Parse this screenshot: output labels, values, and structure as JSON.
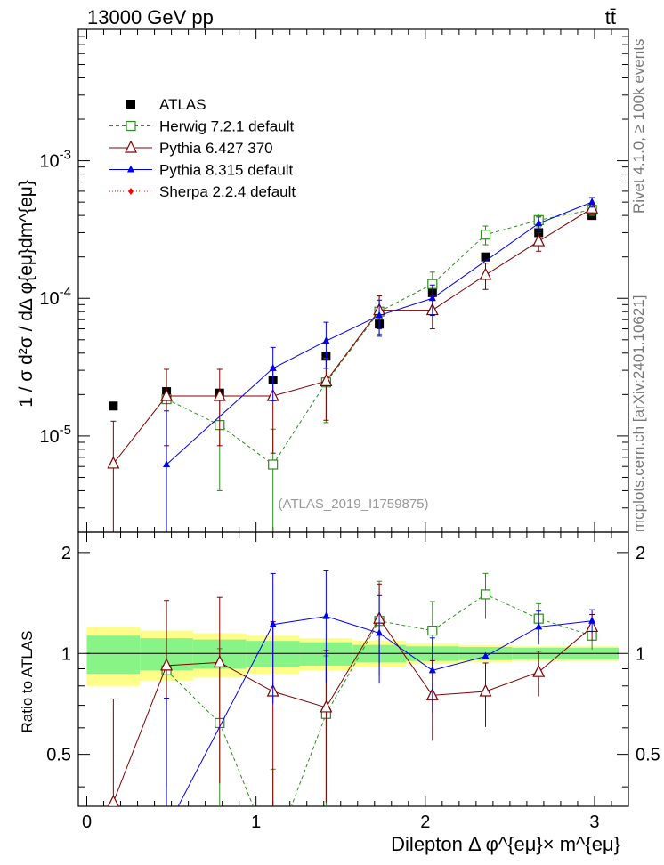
{
  "header": {
    "left": "13000 GeV pp",
    "right": "tt̄"
  },
  "side_text": {
    "rivet": "Rivet 4.1.0, ≥ 100k events",
    "mcplots": "mcplots.cern.ch [arXiv:2401.10621]"
  },
  "analysis_tag": "(ATLAS_2019_I1759875)",
  "colors": {
    "atlas": "#000000",
    "herwig": "#2e8b1e",
    "pythia6": "#800000",
    "pythia8": "#0000ee",
    "sherpa": "#ff0000",
    "band_inner": "#88f488",
    "band_outer": "#fdfd88"
  },
  "chart_data": {
    "type": "scatter",
    "title": "",
    "xlabel": "Dilepton Δ φ^{eμ}× m^{eμ}",
    "ylabel": "1 / σ d²σ / dΔ φ{eμ}dm^{eμ}",
    "ratio_ylabel": "Ratio to ATLAS",
    "xlim": [
      -0.05,
      3.2
    ],
    "ylim": [
      2e-06,
      0.009
    ],
    "yscale": "log",
    "ratio_ylim": [
      0.35,
      2.3
    ],
    "x_ticks": [
      "0",
      "1",
      "2",
      "3"
    ],
    "y_ticks": [
      "10^{-5}",
      "10^{-4}",
      "10^{-3}"
    ],
    "ratio_ticks": [
      "0.5",
      "1",
      "2"
    ],
    "x": [
      0.157,
      0.471,
      0.785,
      1.1,
      1.414,
      1.728,
      2.042,
      2.356,
      2.67,
      2.985
    ],
    "bin_edges": [
      0,
      0.314,
      0.628,
      0.942,
      1.257,
      1.571,
      1.885,
      2.199,
      2.513,
      2.827,
      3.142
    ],
    "ratio_band": {
      "inner": [
        0.13,
        0.11,
        0.1,
        0.09,
        0.08,
        0.06,
        0.05,
        0.045,
        0.04,
        0.04
      ],
      "outer": [
        0.2,
        0.17,
        0.15,
        0.13,
        0.11,
        0.09,
        0.07,
        0.06,
        0.05,
        0.05
      ]
    },
    "series": [
      {
        "name": "ATLAS",
        "marker": "square-filled",
        "values": [
          1.65e-05,
          2.1e-05,
          2.05e-05,
          2.55e-05,
          3.8e-05,
          6.5e-05,
          0.00011,
          0.0002,
          0.0003,
          0.0004
        ],
        "ratio": [
          1,
          1,
          1,
          1,
          1,
          1,
          1,
          1,
          1,
          1
        ]
      },
      {
        "name": "Herwig 7.2.1 default",
        "marker": "square-open",
        "line": "dashed",
        "values": [
          null,
          1.85e-05,
          1.2e-05,
          6.2e-06,
          2.45e-05,
          8e-05,
          0.000127,
          0.00029,
          0.00037,
          0.00044
        ],
        "err_lo": [
          null,
          0.0,
          8e-06,
          5e-06,
          1.2e-05,
          2.5e-05,
          2.8e-05,
          4.5e-05,
          4e-05,
          4e-05
        ],
        "err_hi": [
          null,
          0.0,
          8e-06,
          5e-06,
          1.2e-05,
          2.5e-05,
          2.8e-05,
          4.5e-05,
          4e-05,
          4e-05
        ],
        "ratio": [
          null,
          0.89,
          0.62,
          0.25,
          0.66,
          1.25,
          1.17,
          1.5,
          1.27,
          1.13
        ]
      },
      {
        "name": "Pythia 6.427 370",
        "marker": "triangle-open",
        "line": "solid",
        "values": [
          6.3e-06,
          1.95e-05,
          1.95e-05,
          1.95e-05,
          2.5e-05,
          8.2e-05,
          8.2e-05,
          0.000148,
          0.00026,
          0.00045
        ],
        "err_lo": [
          6.5e-06,
          1.1e-05,
          1.1e-05,
          1.2e-05,
          1.2e-05,
          2.2e-05,
          2.2e-05,
          3.2e-05,
          4e-05,
          4e-05
        ],
        "err_hi": [
          6.5e-06,
          1.1e-05,
          1.1e-05,
          1.2e-05,
          1.2e-05,
          2.2e-05,
          2.2e-05,
          3.2e-05,
          4e-05,
          4e-05
        ],
        "ratio": [
          0.36,
          0.92,
          0.94,
          0.77,
          0.69,
          1.27,
          0.75,
          0.77,
          0.88,
          1.2
        ]
      },
      {
        "name": "Pythia 8.315 default",
        "marker": "triangle-filled",
        "line": "solid",
        "values": [
          null,
          6.2e-06,
          null,
          3.1e-05,
          4.9e-05,
          7.5e-05,
          0.0001,
          null,
          0.00035,
          0.0005
        ],
        "err_lo": [
          null,
          9e-06,
          null,
          1.3e-05,
          1.8e-05,
          2.2e-05,
          2.5e-05,
          null,
          4e-05,
          4e-05
        ],
        "err_hi": [
          null,
          9e-06,
          null,
          1.3e-05,
          1.8e-05,
          2.2e-05,
          2.5e-05,
          null,
          4e-05,
          4e-05
        ],
        "ratio": [
          null,
          0.3,
          null,
          1.22,
          1.29,
          1.15,
          0.89,
          0.98,
          1.2,
          1.25
        ]
      },
      {
        "name": "Sherpa 2.2.4 default",
        "marker": "diamond-filled",
        "line": "dotted",
        "values": [],
        "ratio": []
      }
    ],
    "legend": {
      "position": "top-left",
      "entries": [
        "ATLAS",
        "Herwig 7.2.1 default",
        "Pythia 6.427 370",
        "Pythia 8.315 default",
        "Sherpa 2.2.4 default"
      ]
    }
  }
}
